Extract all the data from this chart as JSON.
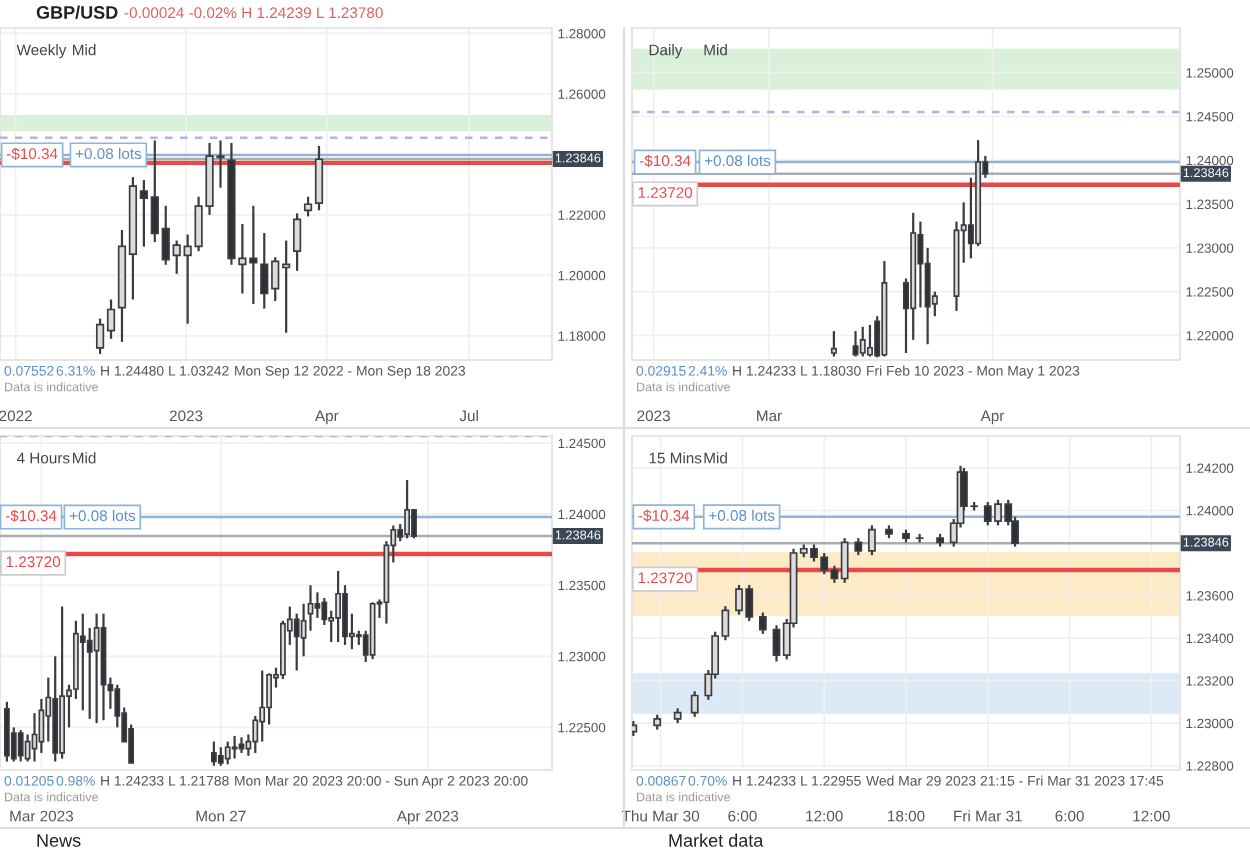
{
  "chart_data": [
    {
      "type": "candlestick",
      "title": "GBP/USD",
      "subtitle": "-0.00024 -0.02% H 1.24239 L 1.23780",
      "x": [
        "2022-11-07",
        "2022-11-14",
        "2022-11-21",
        "2022-11-28",
        "2022-12-05",
        "2022-12-12",
        "2022-12-19",
        "2022-12-26",
        "2023-01-02",
        "2023-01-09",
        "2023-01-16",
        "2023-01-23",
        "2023-01-30",
        "2023-02-06",
        "2023-02-13",
        "2023-02-20",
        "2023-02-27",
        "2023-03-06",
        "2023-03-13",
        "2023-03-20",
        "2023-03-27"
      ],
      "ohlc": [
        [
          1.176,
          1.1857,
          1.174,
          1.1837
        ],
        [
          1.1817,
          1.192,
          1.179,
          1.1887
        ],
        [
          1.1893,
          1.215,
          1.178,
          1.2096
        ],
        [
          1.207,
          1.2325,
          1.192,
          1.2295
        ],
        [
          1.2279,
          1.2315,
          1.2095,
          1.2255
        ],
        [
          1.2259,
          1.2446,
          1.211,
          1.2139
        ],
        [
          1.2155,
          1.223,
          1.2035,
          1.2052
        ],
        [
          1.2066,
          1.2115,
          1.2005,
          1.21
        ],
        [
          1.2066,
          1.2135,
          1.184,
          1.2096
        ],
        [
          1.2096,
          1.226,
          1.208,
          1.2229
        ],
        [
          1.2229,
          1.2438,
          1.22,
          1.2394
        ],
        [
          1.2394,
          1.2446,
          1.229,
          1.239
        ],
        [
          1.238,
          1.2438,
          1.2035,
          1.2056
        ],
        [
          1.2036,
          1.217,
          1.194,
          1.2056
        ],
        [
          1.2056,
          1.223,
          1.1905,
          1.2042
        ],
        [
          1.2036,
          1.214,
          1.189,
          1.194
        ],
        [
          1.1956,
          1.206,
          1.1915,
          1.2046
        ],
        [
          1.2026,
          1.2115,
          1.181,
          1.2036
        ],
        [
          1.208,
          1.2205,
          1.2015,
          1.2185
        ],
        [
          1.2215,
          1.226,
          1.2195,
          1.2235
        ],
        [
          1.2239,
          1.2428,
          1.2215,
          1.2384
        ]
      ],
      "xlim": [
        "2022-09-04",
        "2023-08-23"
      ],
      "ylim": [
        1.172,
        1.2818
      ],
      "xticks": [
        {
          "value": "2022-09-14",
          "label": "2022"
        },
        {
          "value": "2023-01-01",
          "label": "2023"
        },
        {
          "value": "2023-04-01",
          "label": "Apr"
        },
        {
          "value": "2023-07-01",
          "label": "Jul"
        }
      ],
      "yticks": [
        {
          "value": 1.28,
          "label": "1.28000"
        },
        {
          "value": 1.26,
          "label": "1.26000"
        },
        {
          "value": 1.22,
          "label": "1.22000"
        },
        {
          "value": 1.2,
          "label": "1.20000"
        },
        {
          "value": 1.18,
          "label": "1.18000"
        }
      ],
      "grid": true,
      "bands": [
        {
          "axis": "y",
          "from": 1.248,
          "to": 1.2527,
          "color": "#d9f0d9"
        }
      ],
      "ref_lines": [
        {
          "axis": "y",
          "value": 1.2455,
          "color": "#b8b0e0",
          "line_style": "dashed"
        },
        {
          "axis": "y",
          "value": 1.2398,
          "color": "#8fb3d9"
        },
        {
          "axis": "y",
          "value": 1.23846,
          "label": "1.23846",
          "color": "#a9adb3"
        },
        {
          "axis": "y",
          "value": 1.2372,
          "color": "#e84a4a"
        }
      ],
      "annotations": [
        "Weekly",
        "Mid",
        {
          "text": "-$10.34",
          "x": "2022-09-08",
          "y": 1.2398
        },
        {
          "text": "+0.08 lots",
          "x": "2022-10-22",
          "y": 1.2398
        },
        "0.07552",
        "6.31%",
        "H 1.24480",
        "L 1.03242",
        "Mon Sep 12 2022 - Mon Sep 18 2023",
        "Data is indicative"
      ]
    },
    {
      "type": "candlestick",
      "x": [
        "2023-03-10",
        "2023-03-13",
        "2023-03-14",
        "2023-03-15",
        "2023-03-16",
        "2023-03-17",
        "2023-03-20",
        "2023-03-21",
        "2023-03-22",
        "2023-03-23",
        "2023-03-24",
        "2023-03-27",
        "2023-03-28",
        "2023-03-29",
        "2023-03-30",
        "2023-03-31"
      ],
      "ohlc": [
        [
          1.218,
          1.2205,
          1.2176,
          1.2185
        ],
        [
          1.2188,
          1.2205,
          1.2176,
          1.2178
        ],
        [
          1.218,
          1.221,
          1.2176,
          1.2195
        ],
        [
          1.2178,
          1.2212,
          1.2176,
          1.2186
        ],
        [
          1.2216,
          1.2222,
          1.2175,
          1.2177
        ],
        [
          1.2178,
          1.2285,
          1.2176,
          1.226
        ],
        [
          1.226,
          1.2265,
          1.218,
          1.2231
        ],
        [
          1.2231,
          1.234,
          1.2195,
          1.2317
        ],
        [
          1.2315,
          1.233,
          1.2232,
          1.2282
        ],
        [
          1.2282,
          1.23,
          1.219,
          1.2233
        ],
        [
          1.2236,
          1.225,
          1.2222,
          1.2245
        ],
        [
          1.2245,
          1.233,
          1.2228,
          1.232
        ],
        [
          1.232,
          1.2352,
          1.2283,
          1.2326
        ],
        [
          1.2326,
          1.238,
          1.2288,
          1.2305
        ],
        [
          1.2305,
          1.2423,
          1.2302,
          1.2398
        ],
        [
          1.2398,
          1.2405,
          1.238,
          1.23846
        ]
      ],
      "xlim": [
        "2023-02-10",
        "2023-04-27"
      ],
      "ylim": [
        1.2172,
        1.2551
      ],
      "xticks": [
        {
          "value": "2023-02-13",
          "label": "2023"
        },
        {
          "value": "2023-03-01",
          "label": "Mar"
        },
        {
          "value": "2023-04-01",
          "label": "Apr"
        }
      ],
      "yticks": [
        {
          "value": 1.25,
          "label": "1.25000"
        },
        {
          "value": 1.245,
          "label": "1.24500"
        },
        {
          "value": 1.24,
          "label": "1.24000"
        },
        {
          "value": 1.235,
          "label": "1.23500"
        },
        {
          "value": 1.23,
          "label": "1.23000"
        },
        {
          "value": 1.225,
          "label": "1.22500"
        },
        {
          "value": 1.22,
          "label": "1.22000"
        }
      ],
      "grid": true,
      "bands": [
        {
          "axis": "y",
          "from": 1.2482,
          "to": 1.2526,
          "color": "#d9f0d9"
        }
      ],
      "ref_lines": [
        {
          "axis": "y",
          "value": 1.2455,
          "color": "#b8b0e0",
          "line_style": "dashed"
        },
        {
          "axis": "y",
          "value": 1.2398,
          "color": "#8fb3d9"
        },
        {
          "axis": "y",
          "value": 1.23846,
          "label": "1.23846",
          "color": "#a9adb3"
        },
        {
          "axis": "y",
          "value": 1.2372,
          "label": "1.23720",
          "color": "#e84a4a"
        }
      ],
      "annotations": [
        "Daily",
        "Mid",
        {
          "text": "-$10.34",
          "x": "2023-02-11",
          "y": 1.2398
        },
        {
          "text": "+0.08 lots",
          "x": "2023-02-20",
          "y": 1.2398
        },
        "0.02915",
        "2.41%",
        "H 1.24233",
        "L 1.18030",
        "Fri Feb 10 2023 - Mon May 1 2023",
        "Data is indicative"
      ]
    },
    {
      "type": "candlestick",
      "x": [
        "2023-03-21T20:00",
        "2023-03-22T00:00",
        "2023-03-22T04:00",
        "2023-03-22T08:00",
        "2023-03-22T12:00",
        "2023-03-22T16:00",
        "2023-03-22T20:00",
        "2023-03-23T00:00",
        "2023-03-23T04:00",
        "2023-03-23T08:00",
        "2023-03-23T12:00",
        "2023-03-23T16:00",
        "2023-03-23T20:00",
        "2023-03-24T00:00",
        "2023-03-24T04:00",
        "2023-03-24T08:00",
        "2023-03-24T12:00",
        "2023-03-24T16:00",
        "2023-03-24T20:00",
        "2023-03-26T20:00",
        "2023-03-27T00:00",
        "2023-03-27T04:00",
        "2023-03-27T08:00",
        "2023-03-27T12:00",
        "2023-03-27T16:00",
        "2023-03-27T20:00",
        "2023-03-28T00:00",
        "2023-03-28T04:00",
        "2023-03-28T08:00",
        "2023-03-28T12:00",
        "2023-03-28T16:00",
        "2023-03-28T20:00",
        "2023-03-29T00:00",
        "2023-03-29T04:00",
        "2023-03-29T08:00",
        "2023-03-29T12:00",
        "2023-03-29T16:00",
        "2023-03-29T20:00",
        "2023-03-30T00:00",
        "2023-03-30T04:00",
        "2023-03-30T08:00",
        "2023-03-30T12:00",
        "2023-03-30T16:00",
        "2023-03-30T20:00",
        "2023-03-31T00:00",
        "2023-03-31T04:00",
        "2023-03-31T08:00",
        "2023-03-31T12:00",
        "2023-03-31T16:00"
      ],
      "ohlc": [
        [
          1.2263,
          1.2268,
          1.2226,
          1.223
        ],
        [
          1.2246,
          1.225,
          1.2226,
          1.2228
        ],
        [
          1.2246,
          1.2248,
          1.2226,
          1.223
        ],
        [
          1.2228,
          1.2245,
          1.2226,
          1.224
        ],
        [
          1.2235,
          1.226,
          1.2226,
          1.2245
        ],
        [
          1.224,
          1.227,
          1.2232,
          1.2262
        ],
        [
          1.2258,
          1.2285,
          1.224,
          1.2271
        ],
        [
          1.227,
          1.23,
          1.2226,
          1.2232
        ],
        [
          1.2232,
          1.2335,
          1.2228,
          1.2272
        ],
        [
          1.2272,
          1.228,
          1.225,
          1.2276
        ],
        [
          1.2277,
          1.2325,
          1.227,
          1.2316
        ],
        [
          1.2314,
          1.233,
          1.2262,
          1.231
        ],
        [
          1.2311,
          1.232,
          1.2256,
          1.2303
        ],
        [
          1.2304,
          1.233,
          1.2253,
          1.232
        ],
        [
          1.232,
          1.233,
          1.2255,
          1.228
        ],
        [
          1.228,
          1.2285,
          1.2263,
          1.2276
        ],
        [
          1.2277,
          1.228,
          1.225,
          1.2258
        ],
        [
          1.226,
          1.2264,
          1.224,
          1.224
        ],
        [
          1.2249,
          1.2252,
          1.2225,
          1.2225
        ],
        [
          1.2232,
          1.224,
          1.2223,
          1.2226
        ],
        [
          1.223,
          1.2236,
          1.2223,
          1.2225
        ],
        [
          1.2228,
          1.224,
          1.2224,
          1.2236
        ],
        [
          1.2235,
          1.2244,
          1.2228,
          1.2236
        ],
        [
          1.2238,
          1.2243,
          1.2232,
          1.2235
        ],
        [
          1.2235,
          1.2245,
          1.223,
          1.224
        ],
        [
          1.224,
          1.2258,
          1.2232,
          1.2255
        ],
        [
          1.2254,
          1.229,
          1.224,
          1.2264
        ],
        [
          1.2264,
          1.2288,
          1.2252,
          1.2287
        ],
        [
          1.2285,
          1.2292,
          1.2278,
          1.2287
        ],
        [
          1.2287,
          1.2325,
          1.2284,
          1.2323
        ],
        [
          1.2318,
          1.2335,
          1.2308,
          1.2326
        ],
        [
          1.2326,
          1.233,
          1.229,
          1.2314
        ],
        [
          1.2313,
          1.2337,
          1.23,
          1.2325
        ],
        [
          1.233,
          1.235,
          1.2318,
          1.2337
        ],
        [
          1.2337,
          1.2345,
          1.2327,
          1.2334
        ],
        [
          1.2338,
          1.2341,
          1.2322,
          1.2326
        ],
        [
          1.2325,
          1.2332,
          1.231,
          1.2327
        ],
        [
          1.2327,
          1.236,
          1.231,
          1.2344
        ],
        [
          1.2344,
          1.235,
          1.2308,
          1.2314
        ],
        [
          1.2314,
          1.233,
          1.2305,
          1.2316
        ],
        [
          1.2314,
          1.2318,
          1.2308,
          1.2315
        ],
        [
          1.2315,
          1.2318,
          1.2296,
          1.2301
        ],
        [
          1.2301,
          1.2338,
          1.2298,
          1.2337
        ],
        [
          1.2337,
          1.234,
          1.2327,
          1.2338
        ],
        [
          1.2338,
          1.2381,
          1.2323,
          1.2378
        ],
        [
          1.2378,
          1.2392,
          1.2366,
          1.2389
        ],
        [
          1.2389,
          1.2393,
          1.2381,
          1.2384
        ],
        [
          1.2386,
          1.2424,
          1.2383,
          1.2403
        ],
        [
          1.2403,
          1.2403,
          1.2383,
          1.23846
        ]
      ],
      "xlim": [
        "2023-03-21T16:00",
        "2023-04-04T00:00"
      ],
      "ylim": [
        1.222,
        1.2455
      ],
      "xticks": [
        {
          "value": "2023-03-22T16:00",
          "label": "Mar 2023"
        },
        {
          "value": "2023-03-27T00:00",
          "label": "Mon 27"
        },
        {
          "value": "2023-04-01T00:00",
          "label": "Apr 2023"
        }
      ],
      "yticks": [
        {
          "value": 1.245,
          "label": "1.24500"
        },
        {
          "value": 1.24,
          "label": "1.24000"
        },
        {
          "value": 1.235,
          "label": "1.23500"
        },
        {
          "value": 1.23,
          "label": "1.23000"
        },
        {
          "value": 1.225,
          "label": "1.22500"
        }
      ],
      "grid": true,
      "ref_lines": [
        {
          "axis": "y",
          "value": 1.2455,
          "color": "#b8b0e0",
          "line_style": "dashed"
        },
        {
          "axis": "y",
          "value": 1.2398,
          "color": "#8fb3d9"
        },
        {
          "axis": "y",
          "value": 1.23846,
          "label": "1.23846",
          "color": "#a9adb3"
        },
        {
          "axis": "y",
          "value": 1.2372,
          "label": "1.23720",
          "color": "#e84a4a"
        }
      ],
      "annotations": [
        "4 Hours",
        "Mid",
        {
          "text": "-$10.34",
          "x": "2023-03-21T19:00",
          "y": 1.2398
        },
        {
          "text": "+0.08 lots",
          "x": "2023-03-23T08:00",
          "y": 1.2398
        },
        "0.01205",
        "0.98%",
        "H 1.24233",
        "L 1.21788",
        "Mon Mar 20 2023 20:00 - Sun Apr 2 2023 20:00",
        "Data is indicative",
        "News"
      ]
    },
    {
      "type": "candlestick",
      "x": [
        "2023-03-29T22:00",
        "2023-03-29T23:45",
        "2023-03-30T01:15",
        "2023-03-30T02:30",
        "2023-03-30T03:30",
        "2023-03-30T04:00",
        "2023-03-30T04:45",
        "2023-03-30T05:45",
        "2023-03-30T06:30",
        "2023-03-30T07:30",
        "2023-03-30T08:30",
        "2023-03-30T09:15",
        "2023-03-30T09:45",
        "2023-03-30T10:30",
        "2023-03-30T11:15",
        "2023-03-30T12:00",
        "2023-03-30T12:45",
        "2023-03-30T13:30",
        "2023-03-30T14:30",
        "2023-03-30T15:30",
        "2023-03-30T16:45",
        "2023-03-30T18:00",
        "2023-03-30T19:00",
        "2023-03-30T20:30",
        "2023-03-30T21:30",
        "2023-03-30T22:00",
        "2023-03-30T22:15",
        "2023-03-30T23:00",
        "2023-03-31T00:00",
        "2023-03-31T00:45",
        "2023-03-31T01:30",
        "2023-03-31T02:00"
      ],
      "ohlc": [
        [
          1.2296,
          1.2301,
          1.2294,
          1.2299
        ],
        [
          1.2299,
          1.2304,
          1.2297,
          1.2302
        ],
        [
          1.2302,
          1.2307,
          1.23,
          1.2305
        ],
        [
          1.2305,
          1.2315,
          1.2303,
          1.2313
        ],
        [
          1.2313,
          1.2325,
          1.2311,
          1.2323
        ],
        [
          1.2323,
          1.2343,
          1.2321,
          1.2341
        ],
        [
          1.2341,
          1.2355,
          1.2339,
          1.2353
        ],
        [
          1.2353,
          1.2365,
          1.2351,
          1.2363
        ],
        [
          1.2363,
          1.2365,
          1.2348,
          1.235
        ],
        [
          1.235,
          1.2352,
          1.2342,
          1.2344
        ],
        [
          1.2344,
          1.2346,
          1.2329,
          1.2332
        ],
        [
          1.2332,
          1.2349,
          1.233,
          1.2347
        ],
        [
          1.2347,
          1.2382,
          1.2345,
          1.238
        ],
        [
          1.238,
          1.2384,
          1.2378,
          1.2382
        ],
        [
          1.2382,
          1.2384,
          1.2376,
          1.2378
        ],
        [
          1.2378,
          1.238,
          1.237,
          1.2372
        ],
        [
          1.2372,
          1.2374,
          1.2366,
          1.2368
        ],
        [
          1.2368,
          1.2387,
          1.2366,
          1.2385
        ],
        [
          1.2385,
          1.2387,
          1.2379,
          1.2381
        ],
        [
          1.2381,
          1.2393,
          1.2379,
          1.2391
        ],
        [
          1.2391,
          1.2393,
          1.2387,
          1.2389
        ],
        [
          1.2389,
          1.2391,
          1.2385,
          1.2387
        ],
        [
          1.2387,
          1.2389,
          1.2385,
          1.2387
        ],
        [
          1.2387,
          1.2389,
          1.2383,
          1.2385
        ],
        [
          1.2385,
          1.2396,
          1.2383,
          1.2394
        ],
        [
          1.2394,
          1.2421,
          1.2392,
          1.2418
        ],
        [
          1.2418,
          1.242,
          1.24,
          1.2402
        ],
        [
          1.2402,
          1.2404,
          1.24,
          1.2402
        ],
        [
          1.2402,
          1.2404,
          1.2393,
          1.2395
        ],
        [
          1.2395,
          1.2405,
          1.2393,
          1.2403
        ],
        [
          1.2403,
          1.2405,
          1.2393,
          1.2395
        ],
        [
          1.2395,
          1.2397,
          1.2383,
          1.23846
        ]
      ],
      "xlim": [
        "2023-03-29T21:54",
        "2023-03-31T14:06"
      ],
      "ylim": [
        1.2278,
        1.2435
      ],
      "xticks": [
        {
          "value": "2023-03-30T00:00",
          "label": "Thu Mar 30"
        },
        {
          "value": "2023-03-30T06:00",
          "label": "6:00"
        },
        {
          "value": "2023-03-30T12:00",
          "label": "12:00"
        },
        {
          "value": "2023-03-30T18:00",
          "label": "18:00"
        },
        {
          "value": "2023-03-31T00:00",
          "label": "Fri Mar 31"
        },
        {
          "value": "2023-03-31T06:00",
          "label": "6:00"
        },
        {
          "value": "2023-03-31T12:00",
          "label": "12:00"
        }
      ],
      "yticks": [
        {
          "value": 1.242,
          "label": "1.24200"
        },
        {
          "value": 1.24,
          "label": "1.24000"
        },
        {
          "value": 1.236,
          "label": "1.23600"
        },
        {
          "value": 1.234,
          "label": "1.23400"
        },
        {
          "value": 1.232,
          "label": "1.23200"
        },
        {
          "value": 1.23,
          "label": "1.23000"
        },
        {
          "value": 1.228,
          "label": "1.22800"
        }
      ],
      "grid": true,
      "bands": [
        {
          "axis": "y",
          "from": 1.2351,
          "to": 1.238,
          "color": "#fdebc8"
        },
        {
          "axis": "y",
          "from": 1.2305,
          "to": 1.2323,
          "color": "#dce9f7"
        }
      ],
      "ref_lines": [
        {
          "axis": "y",
          "value": 1.2397,
          "color": "#8fb3d9"
        },
        {
          "axis": "y",
          "value": 1.23846,
          "label": "1.23846",
          "color": "#a9adb3"
        },
        {
          "axis": "y",
          "value": 1.2372,
          "label": "1.23720",
          "color": "#e84a4a"
        }
      ],
      "annotations": [
        "15 Mins",
        "Mid",
        {
          "text": "-$10.34",
          "x": "2023-03-29T22:20",
          "y": 1.2397
        },
        {
          "text": "+0.08 lots",
          "x": "2023-03-30T03:30",
          "y": 1.2397
        },
        "0.00867",
        "0.70%",
        "H 1.24233",
        "L 1.22955",
        "Wed Mar 29 2023 21:15 - Fri Mar 31 2023 17:45",
        "Data is indicative",
        "Market data"
      ]
    }
  ]
}
